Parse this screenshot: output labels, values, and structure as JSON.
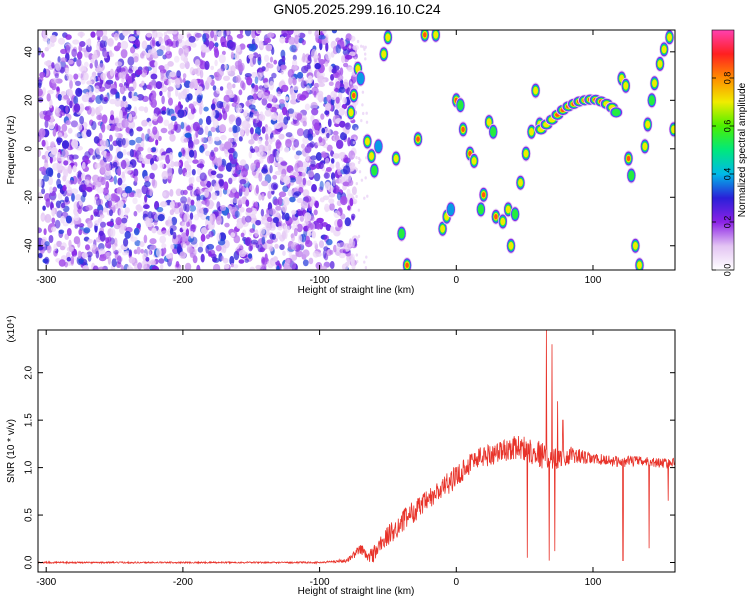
{
  "title": "GN05.2025.299.16.10.C24",
  "chart_data": [
    {
      "type": "heatmap",
      "xlabel": "Height of straight line (km)",
      "ylabel": "Frequency (Hz)",
      "xlim": [
        -306,
        160
      ],
      "ylim": [
        -50,
        49
      ],
      "xticks": [
        -300,
        -200,
        -100,
        0,
        100
      ],
      "yticks": [
        -40,
        -20,
        0,
        20,
        40
      ],
      "colorbar": {
        "label": "Normalized spectral amplitude",
        "range": [
          0,
          1
        ],
        "ticks": [
          "0.0",
          "0.2",
          "0.4",
          "0.6",
          "0.8"
        ],
        "tick_values": [
          0,
          0.2,
          0.4,
          0.6,
          0.8
        ],
        "colors": [
          "#ffffff",
          "#e3c4f3",
          "#8b22e6",
          "#2a1fd8",
          "#00b9e8",
          "#00e87c",
          "#4cf000",
          "#f0ec00",
          "#ff8c00",
          "#ff2020",
          "#ff40b0"
        ]
      },
      "noise_region_x": [
        -306,
        -78
      ],
      "blobs": [
        {
          "x": -75,
          "y": 22,
          "v": 0.9
        },
        {
          "x": -77,
          "y": 15,
          "v": 0.7
        },
        {
          "x": -72,
          "y": 33,
          "v": 0.8
        },
        {
          "x": -70,
          "y": 29,
          "v": 0.5
        },
        {
          "x": -65,
          "y": 3,
          "v": 0.8
        },
        {
          "x": -62,
          "y": -3,
          "v": 0.7
        },
        {
          "x": -60,
          "y": -9,
          "v": 0.6
        },
        {
          "x": -57,
          "y": 1,
          "v": 0.5
        },
        {
          "x": -53,
          "y": 39,
          "v": 0.8
        },
        {
          "x": -50,
          "y": 46,
          "v": 0.7
        },
        {
          "x": -44,
          "y": -4,
          "v": 0.7
        },
        {
          "x": -40,
          "y": -35,
          "v": 0.6
        },
        {
          "x": -36,
          "y": -48,
          "v": 0.9
        },
        {
          "x": -28,
          "y": 4,
          "v": 0.85
        },
        {
          "x": -23,
          "y": 47,
          "v": 0.95
        },
        {
          "x": -15,
          "y": 47,
          "v": 0.8
        },
        {
          "x": -10,
          "y": -33,
          "v": 0.7
        },
        {
          "x": -7,
          "y": -28,
          "v": 0.8
        },
        {
          "x": -4,
          "y": -25,
          "v": 0.5
        },
        {
          "x": 0,
          "y": 20,
          "v": 0.9
        },
        {
          "x": 3,
          "y": 18,
          "v": 0.6
        },
        {
          "x": 5,
          "y": 8,
          "v": 0.9
        },
        {
          "x": 10,
          "y": -2,
          "v": 0.85
        },
        {
          "x": 13,
          "y": -5,
          "v": 0.7
        },
        {
          "x": 18,
          "y": -25,
          "v": 0.6
        },
        {
          "x": 20,
          "y": -19,
          "v": 0.9
        },
        {
          "x": 24,
          "y": 11,
          "v": 0.8
        },
        {
          "x": 27,
          "y": 7,
          "v": 0.6
        },
        {
          "x": 29,
          "y": -28,
          "v": 0.85
        },
        {
          "x": 34,
          "y": -30,
          "v": 0.8
        },
        {
          "x": 38,
          "y": -25,
          "v": 0.7
        },
        {
          "x": 40,
          "y": -40,
          "v": 0.8
        },
        {
          "x": 43,
          "y": -27,
          "v": 0.6
        },
        {
          "x": 47,
          "y": -14,
          "v": 0.8
        },
        {
          "x": 51,
          "y": -2,
          "v": 0.8
        },
        {
          "x": 55,
          "y": 7,
          "v": 0.75
        },
        {
          "x": 58,
          "y": 24,
          "v": 0.7
        },
        {
          "x": 61,
          "y": 10,
          "v": 0.8
        },
        {
          "x": 121,
          "y": 29,
          "v": 0.7
        },
        {
          "x": 124,
          "y": 26,
          "v": 0.8
        },
        {
          "x": 126,
          "y": -4,
          "v": 0.85
        },
        {
          "x": 128,
          "y": -11,
          "v": 0.6
        },
        {
          "x": 131,
          "y": -40,
          "v": 0.8
        },
        {
          "x": 134,
          "y": -48,
          "v": 0.7
        },
        {
          "x": 138,
          "y": 1,
          "v": 0.7
        },
        {
          "x": 140,
          "y": 10,
          "v": 0.8
        },
        {
          "x": 143,
          "y": 20,
          "v": 0.6
        },
        {
          "x": 145,
          "y": 27,
          "v": 0.7
        },
        {
          "x": 149,
          "y": 35,
          "v": 0.7
        },
        {
          "x": 152,
          "y": 41,
          "v": 0.8
        },
        {
          "x": 156,
          "y": 46,
          "v": 0.75
        },
        {
          "x": 159,
          "y": 8,
          "v": 0.8
        }
      ],
      "arc": [
        {
          "x": 62,
          "y": 8,
          "v": 0.7
        },
        {
          "x": 66,
          "y": 10,
          "v": 0.75
        },
        {
          "x": 70,
          "y": 12,
          "v": 0.8
        },
        {
          "x": 74,
          "y": 14,
          "v": 0.85
        },
        {
          "x": 78,
          "y": 16,
          "v": 0.85
        },
        {
          "x": 82,
          "y": 17.5,
          "v": 0.85
        },
        {
          "x": 86,
          "y": 18.5,
          "v": 0.9
        },
        {
          "x": 90,
          "y": 19.5,
          "v": 0.95
        },
        {
          "x": 94,
          "y": 20,
          "v": 0.95
        },
        {
          "x": 98,
          "y": 20.3,
          "v": 0.9
        },
        {
          "x": 102,
          "y": 20.2,
          "v": 0.9
        },
        {
          "x": 106,
          "y": 19.5,
          "v": 0.85
        },
        {
          "x": 110,
          "y": 18.5,
          "v": 0.8
        },
        {
          "x": 114,
          "y": 17,
          "v": 0.7
        },
        {
          "x": 117,
          "y": 15,
          "v": 0.6
        }
      ]
    },
    {
      "type": "line",
      "xlabel": "Height of straight line (km)",
      "ylabel": "SNR (10 * v/v)",
      "scale_label": "(x10⁴)",
      "xlim": [
        -306,
        160
      ],
      "ylim": [
        -0.1,
        2.45
      ],
      "xticks": [
        -300,
        -200,
        -100,
        0,
        100
      ],
      "yticks": [
        "0.0",
        "0.5",
        "1.0",
        "1.5",
        "2.0"
      ],
      "ytick_values": [
        0,
        0.5,
        1.0,
        1.5,
        2.0
      ],
      "color": "#e8332a",
      "envelope": {
        "x": [
          -306,
          -150,
          -100,
          -80,
          -75,
          -70,
          -65,
          -60,
          -55,
          -50,
          -45,
          -40,
          -35,
          -30,
          -25,
          -20,
          -15,
          -10,
          -5,
          0,
          5,
          10,
          15,
          20,
          25,
          30,
          35,
          40,
          45,
          50,
          55,
          60,
          65,
          70,
          75,
          80,
          85,
          90,
          95,
          100,
          110,
          120,
          130,
          140,
          150,
          160
        ],
        "y": [
          0.0,
          0.0,
          0.0,
          0.02,
          0.08,
          0.15,
          0.05,
          0.1,
          0.2,
          0.28,
          0.35,
          0.42,
          0.5,
          0.55,
          0.6,
          0.66,
          0.72,
          0.78,
          0.85,
          0.9,
          0.98,
          1.05,
          1.1,
          1.12,
          1.14,
          1.16,
          1.18,
          1.2,
          1.22,
          1.2,
          1.18,
          1.15,
          1.12,
          1.1,
          1.1,
          1.12,
          1.13,
          1.12,
          1.1,
          1.09,
          1.08,
          1.06,
          1.07,
          1.06,
          1.05,
          1.05
        ]
      },
      "noise_amplitude": {
        "x": [
          -306,
          -100,
          -80,
          -60,
          -40,
          -20,
          0,
          20,
          40,
          60,
          80,
          100,
          160
        ],
        "y": [
          0.008,
          0.008,
          0.02,
          0.1,
          0.12,
          0.12,
          0.12,
          0.12,
          0.12,
          0.15,
          0.1,
          0.06,
          0.05
        ]
      },
      "spikes": [
        {
          "x": 52,
          "y": 0.05
        },
        {
          "x": 66,
          "y": 2.45
        },
        {
          "x": 68,
          "y": 0.02
        },
        {
          "x": 70,
          "y": 2.3
        },
        {
          "x": 72,
          "y": 0.12
        },
        {
          "x": 74,
          "y": 1.7
        },
        {
          "x": 78,
          "y": 1.5
        },
        {
          "x": 122,
          "y": 0.02
        },
        {
          "x": 141,
          "y": 0.15
        },
        {
          "x": 155,
          "y": 0.65
        }
      ]
    }
  ]
}
